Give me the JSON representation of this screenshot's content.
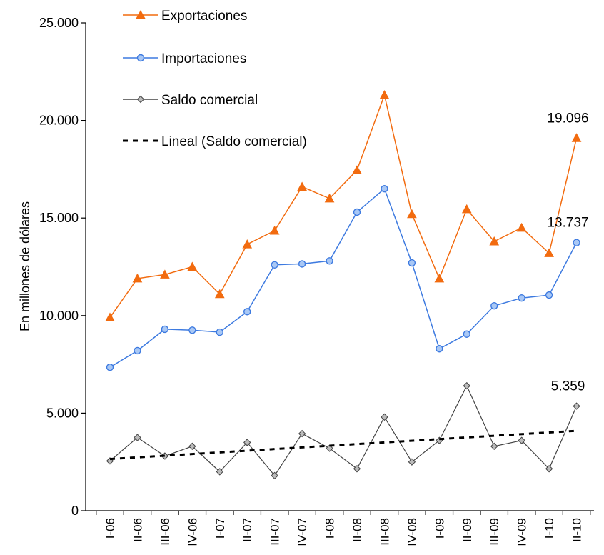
{
  "chart_data": {
    "type": "line",
    "title": "",
    "xlabel": "",
    "ylabel": "En millones de dólares",
    "ylim": [
      0,
      25000
    ],
    "yticks": [
      "0",
      "5.000",
      "10.000",
      "15.000",
      "20.000",
      "25.000"
    ],
    "categories": [
      "I-06",
      "II-06",
      "III-06",
      "IV-06",
      "I-07",
      "II-07",
      "III-07",
      "IV-07",
      "I-08",
      "II-08",
      "III-08",
      "IV-08",
      "I-09",
      "II-09",
      "III-09",
      "IV-09",
      "I-10",
      "II-10"
    ],
    "grid": false,
    "legend_position": "top-left",
    "series": [
      {
        "name": "Exportaciones",
        "color": "#f26b0f",
        "marker": "triangle",
        "values": [
          9900,
          11900,
          12100,
          12500,
          11100,
          13650,
          14350,
          16600,
          16000,
          17450,
          21300,
          15200,
          11900,
          15450,
          13800,
          14500,
          13200,
          19096
        ],
        "last_label": "19.096"
      },
      {
        "name": "Importaciones",
        "color": "#3d7ae0",
        "marker": "circle",
        "values": [
          7350,
          8200,
          9300,
          9250,
          9150,
          10200,
          12600,
          12650,
          12800,
          15300,
          16500,
          12700,
          8300,
          9050,
          10500,
          10900,
          11050,
          13737
        ],
        "last_label": "13.737"
      },
      {
        "name": "Saldo comercial",
        "color": "#444444",
        "marker": "diamond",
        "values": [
          2550,
          3750,
          2800,
          3300,
          2000,
          3500,
          1800,
          3950,
          3200,
          2150,
          4800,
          2500,
          3600,
          6400,
          3300,
          3600,
          2150,
          5359
        ],
        "last_label": "5.359"
      },
      {
        "name": "Lineal (Saldo comercial)",
        "color": "#000000",
        "style": "dashed",
        "values": [
          2650,
          2735,
          2820,
          2905,
          2990,
          3075,
          3160,
          3245,
          3330,
          3415,
          3500,
          3585,
          3670,
          3755,
          3840,
          3925,
          4010,
          4095
        ]
      }
    ]
  }
}
